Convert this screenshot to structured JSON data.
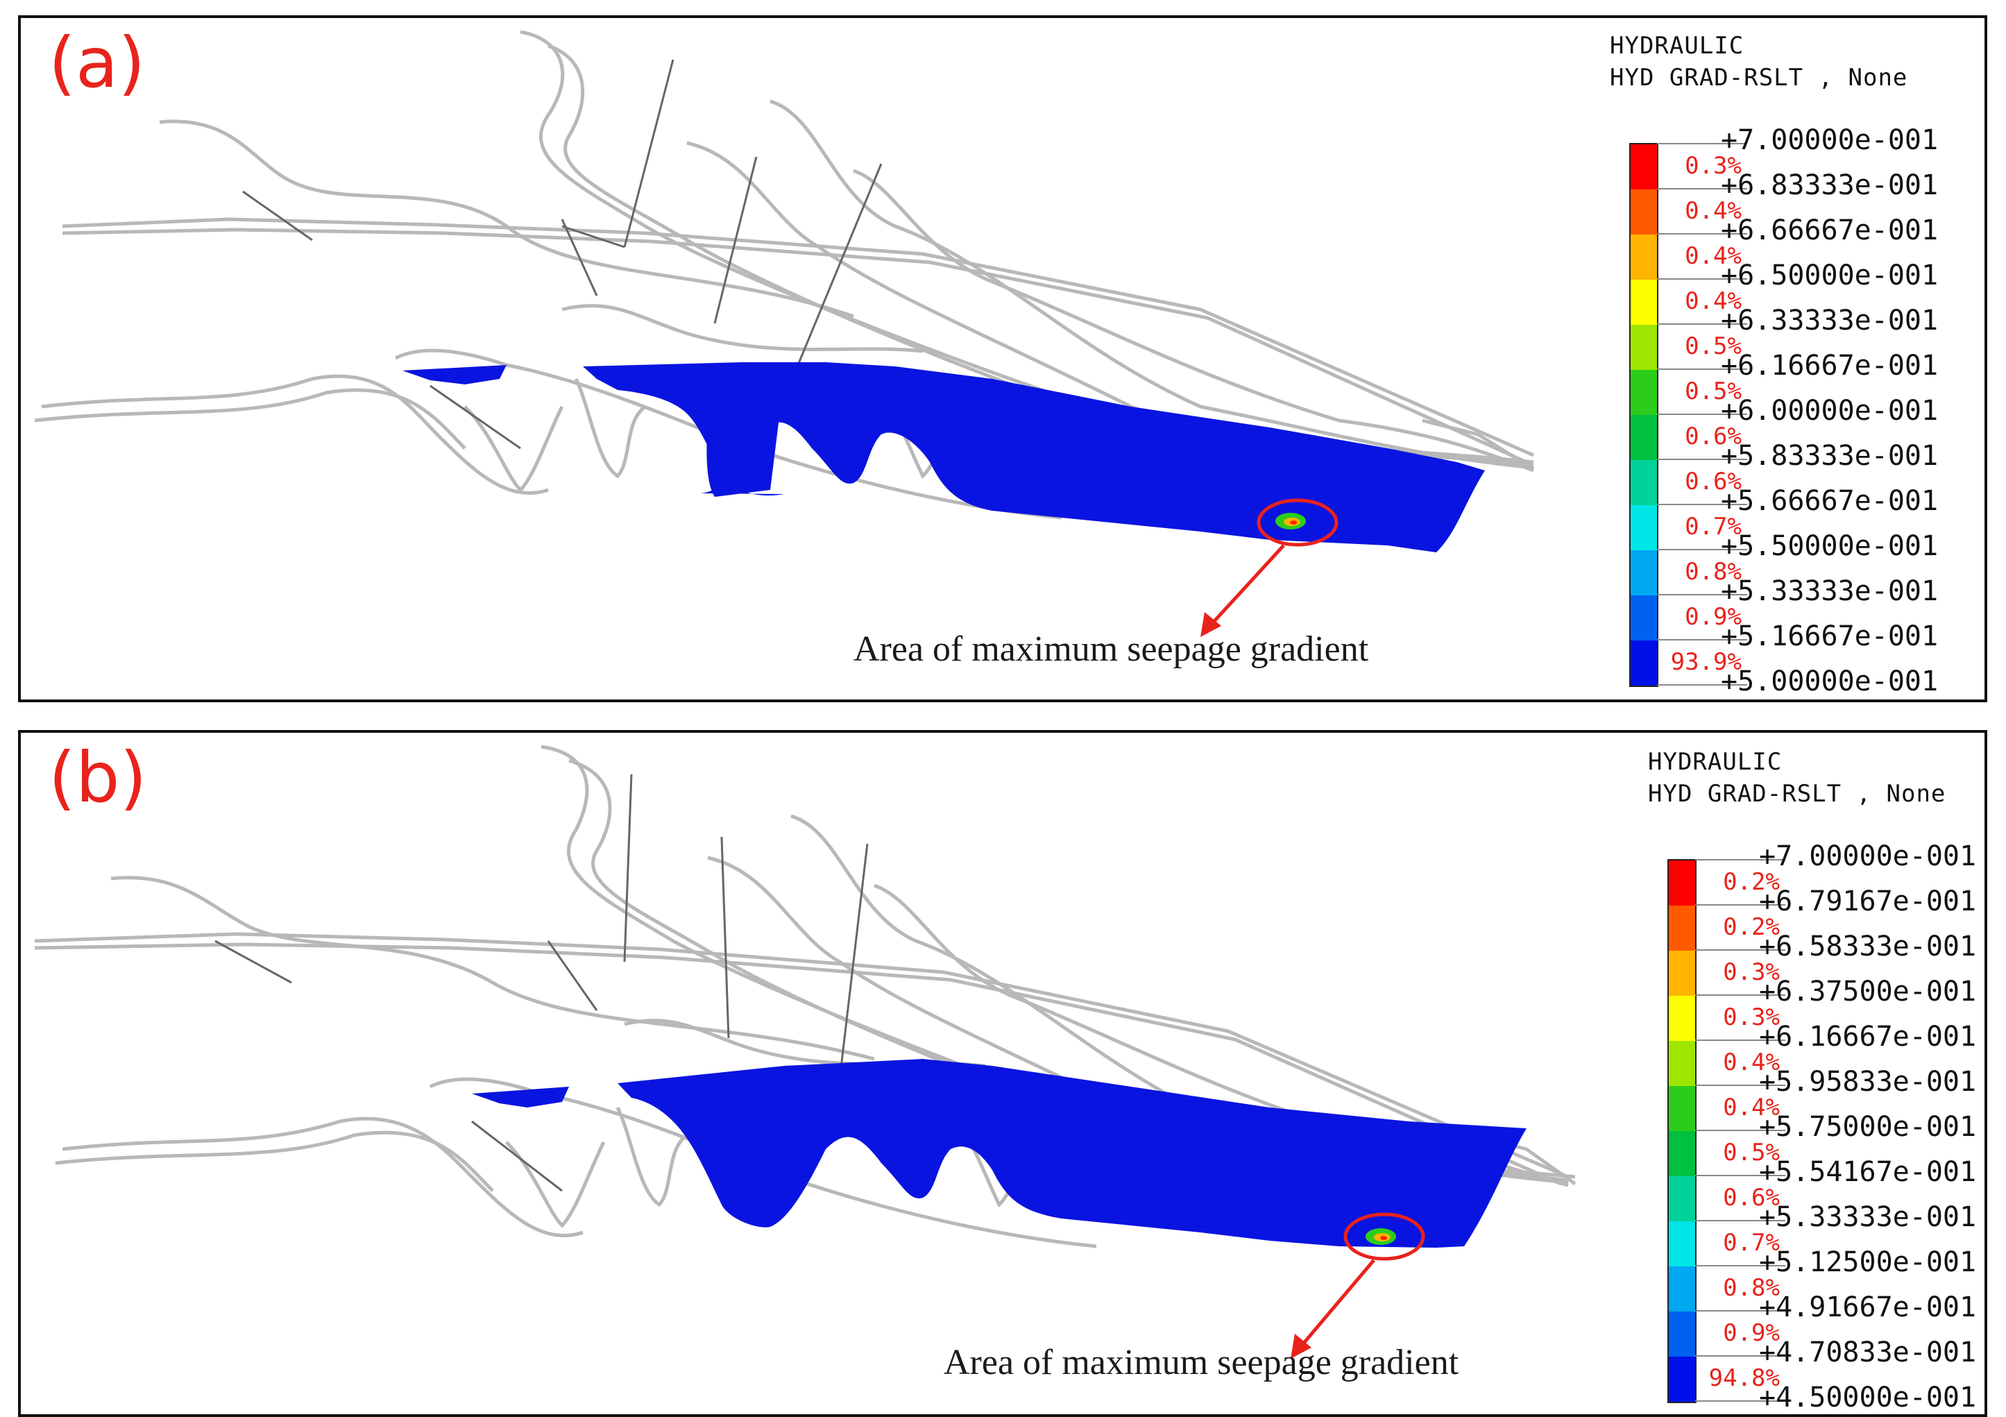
{
  "panels": [
    {
      "id": "a",
      "label": "(a)",
      "annotation": "Area of maximum seepage gradient",
      "legend": {
        "title_line1": "HYDRAULIC",
        "title_line2": "HYD GRAD-RSLT , None",
        "bands": [
          {
            "color": "#ff0000",
            "pct": "0.3%"
          },
          {
            "color": "#ff5a00",
            "pct": "0.4%"
          },
          {
            "color": "#ffb400",
            "pct": "0.4%"
          },
          {
            "color": "#ffff00",
            "pct": "0.4%"
          },
          {
            "color": "#9ee600",
            "pct": "0.5%"
          },
          {
            "color": "#2ccd1a",
            "pct": "0.5%"
          },
          {
            "color": "#00c040",
            "pct": "0.6%"
          },
          {
            "color": "#00d29a",
            "pct": "0.6%"
          },
          {
            "color": "#00e6e6",
            "pct": "0.7%"
          },
          {
            "color": "#00a8f0",
            "pct": "0.8%"
          },
          {
            "color": "#0060f0",
            "pct": "0.9%"
          },
          {
            "color": "#0010e8",
            "pct": "93.9%"
          }
        ],
        "ticks": [
          "+7.00000e-001",
          "+6.83333e-001",
          "+6.66667e-001",
          "+6.50000e-001",
          "+6.33333e-001",
          "+6.16667e-001",
          "+6.00000e-001",
          "+5.83333e-001",
          "+5.66667e-001",
          "+5.50000e-001",
          "+5.33333e-001",
          "+5.16667e-001",
          "+5.00000e-001"
        ]
      }
    },
    {
      "id": "b",
      "label": "(b)",
      "annotation": "Area of maximum seepage gradient",
      "legend": {
        "title_line1": "HYDRAULIC",
        "title_line2": "HYD GRAD-RSLT , None",
        "bands": [
          {
            "color": "#ff0000",
            "pct": "0.2%"
          },
          {
            "color": "#ff5a00",
            "pct": "0.2%"
          },
          {
            "color": "#ffb400",
            "pct": "0.3%"
          },
          {
            "color": "#ffff00",
            "pct": "0.3%"
          },
          {
            "color": "#9ee600",
            "pct": "0.4%"
          },
          {
            "color": "#2ccd1a",
            "pct": "0.4%"
          },
          {
            "color": "#00c040",
            "pct": "0.5%"
          },
          {
            "color": "#00d29a",
            "pct": "0.6%"
          },
          {
            "color": "#00e6e6",
            "pct": "0.7%"
          },
          {
            "color": "#00a8f0",
            "pct": "0.8%"
          },
          {
            "color": "#0060f0",
            "pct": "0.9%"
          },
          {
            "color": "#0010e8",
            "pct": "94.8%"
          }
        ],
        "ticks": [
          "+7.00000e-001",
          "+6.79167e-001",
          "+6.58333e-001",
          "+6.37500e-001",
          "+6.16667e-001",
          "+5.95833e-001",
          "+5.75000e-001",
          "+5.54167e-001",
          "+5.33333e-001",
          "+5.12500e-001",
          "+4.91667e-001",
          "+4.70833e-001",
          "+4.50000e-001"
        ]
      }
    }
  ],
  "colors": {
    "seepage_zone": "#0a14e0",
    "annotation_marker": "#e8231c",
    "model_outline": "#b8b8b8"
  }
}
